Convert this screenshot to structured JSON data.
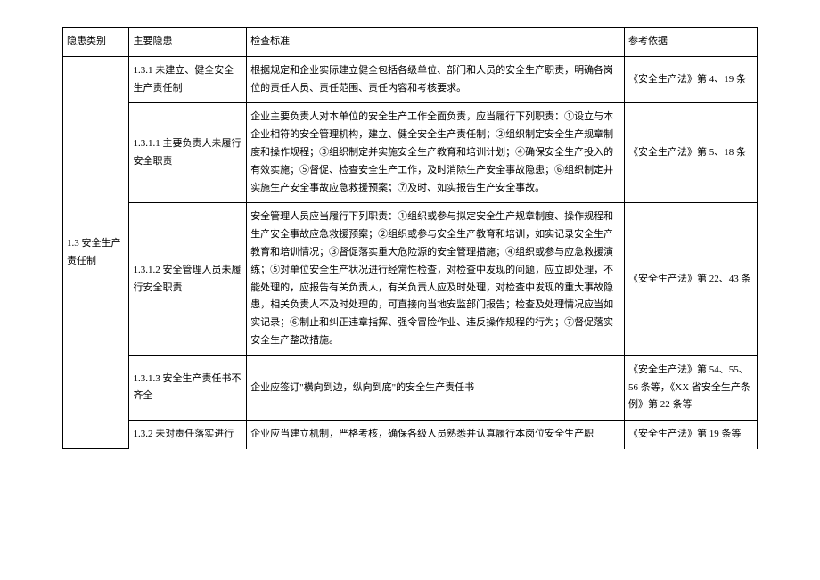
{
  "table": {
    "headers": {
      "category": "隐患类别",
      "hazard": "主要隐患",
      "standard": "检查标准",
      "reference": "参考依据"
    },
    "category": "1.3 安全生产责任制",
    "rows": [
      {
        "hazard": "1.3.1 未建立、健全安全生产责任制",
        "standard": "根据规定和企业实际建立健全包括各级单位、部门和人员的安全生产职责，明确各岗位的责任人员、责任范围、责任内容和考核要求。",
        "reference": "《安全生产法》第 4、19 条"
      },
      {
        "hazard": "1.3.1.1 主要负责人未履行安全职责",
        "standard": "企业主要负责人对本单位的安全生产工作全面负责，应当履行下列职责：①设立与本企业相符的安全管理机构，建立、健全安全生产责任制；②组织制定安全生产规章制度和操作规程；③组织制定并实施安全生产教育和培训计划；④确保安全生产投入的有效实施；⑤督促、检查安全生产工作，及时消除生产安全事故隐患；⑥组织制定并实施生产安全事故应急救援预案；⑦及时、如实报告生产安全事故。",
        "reference": "《安全生产法》第 5、18 条"
      },
      {
        "hazard": "1.3.1.2 安全管理人员未履行安全职责",
        "standard": "安全管理人员应当履行下列职责：①组织或参与拟定安全生产规章制度、操作规程和生产安全事故应急救援预案；②组织或参与安全生产教育和培训，如实记录安全生产教育和培训情况；③督促落实重大危险源的安全管理措施；④组织或参与应急救援演练；⑤对单位安全生产状况进行经常性检查，对检查中发现的问题，应立即处理，不能处理的，应报告有关负责人，有关负责人应及时处理，对检查中发现的重大事故隐患，相关负责人不及时处理的，可直接向当地安监部门报告；检查及处理情况应当如实记录；⑥制止和纠正违章指挥、强令冒险作业、违反操作规程的行为；⑦督促落实安全生产整改措施。",
        "reference": "《安全生产法》第 22、43 条"
      },
      {
        "hazard": "1.3.1.3 安全生产责任书不齐全",
        "standard": "企业应签订\"横向到边，纵向到底\"的安全生产责任书",
        "reference": "《安全生产法》第 54、55、56 条等，《XX 省安全生产条例》第 22 条等"
      },
      {
        "hazard": "1.3.2 未对责任落实进行",
        "standard": "企业应当建立机制，严格考核，确保各级人员熟悉并认真履行本岗位安全生产职",
        "reference": "《安全生产法》第 19 条等"
      }
    ]
  }
}
